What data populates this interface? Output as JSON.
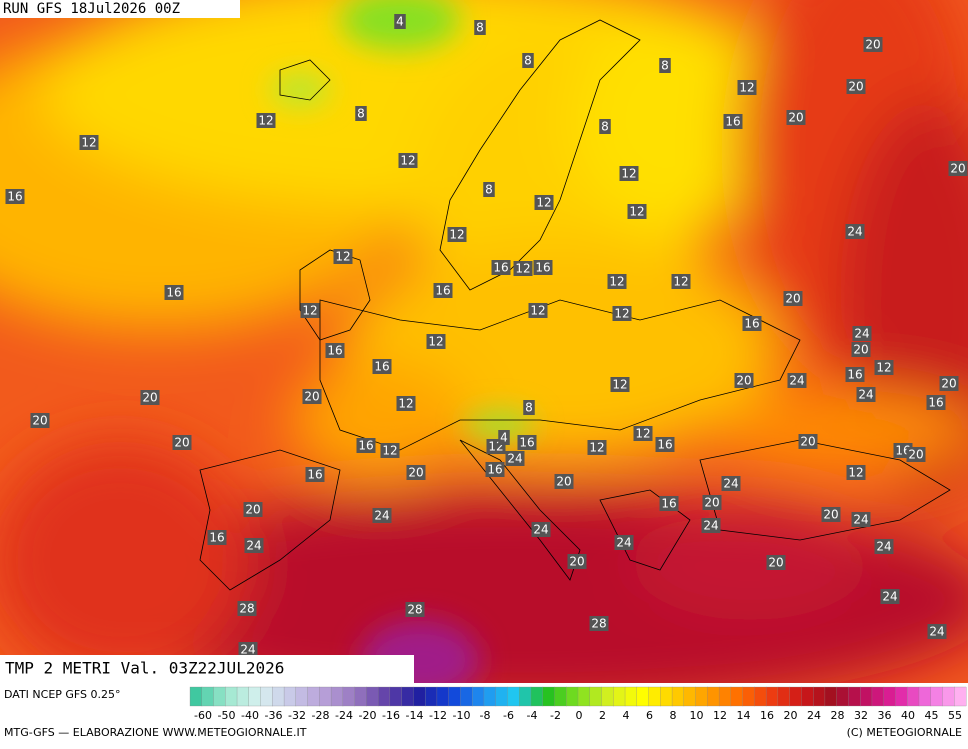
{
  "header": {
    "run": "RUN GFS 18Jul2026 00Z",
    "field": "TMP 2 METRI Val. 03Z22JUL2026"
  },
  "footer": {
    "source": "DATI NCEP GFS 0.25°",
    "credit": "MTG-GFS — ELABORAZIONE WWW.METEOGIORNALE.IT",
    "copyright": "(C) METEOGIORNALE"
  },
  "colorbar": {
    "labels": [
      "-60",
      "-50",
      "-40",
      "-36",
      "-32",
      "-28",
      "-24",
      "-20",
      "-16",
      "-14",
      "-12",
      "-10",
      "-8",
      "-6",
      "-4",
      "-2",
      "0",
      "2",
      "4",
      "6",
      "8",
      "10",
      "12",
      "14",
      "16",
      "20",
      "24",
      "28",
      "32",
      "36",
      "40",
      "45",
      "55"
    ]
  },
  "map_labels": [
    "4",
    "8",
    "8",
    "8",
    "20",
    "12",
    "20",
    "8",
    "12",
    "8",
    "16",
    "20",
    "12",
    "12",
    "12",
    "20",
    "16",
    "8",
    "12",
    "12",
    "12",
    "24",
    "12",
    "16",
    "12",
    "16",
    "12",
    "12",
    "16",
    "16",
    "20",
    "12",
    "12",
    "12",
    "16",
    "24",
    "12",
    "20",
    "16",
    "16",
    "16",
    "12",
    "20",
    "24",
    "12",
    "20",
    "24",
    "20",
    "20",
    "12",
    "8",
    "16",
    "20",
    "20",
    "16",
    "12",
    "12",
    "4",
    "16",
    "12",
    "12",
    "16",
    "20",
    "16",
    "20",
    "24",
    "12",
    "20",
    "16",
    "16",
    "20",
    "24",
    "16",
    "20",
    "20",
    "24",
    "20",
    "24",
    "24",
    "24",
    "16",
    "24",
    "24",
    "24",
    "20",
    "20",
    "28",
    "28",
    "24",
    "28",
    "24",
    "24"
  ]
}
